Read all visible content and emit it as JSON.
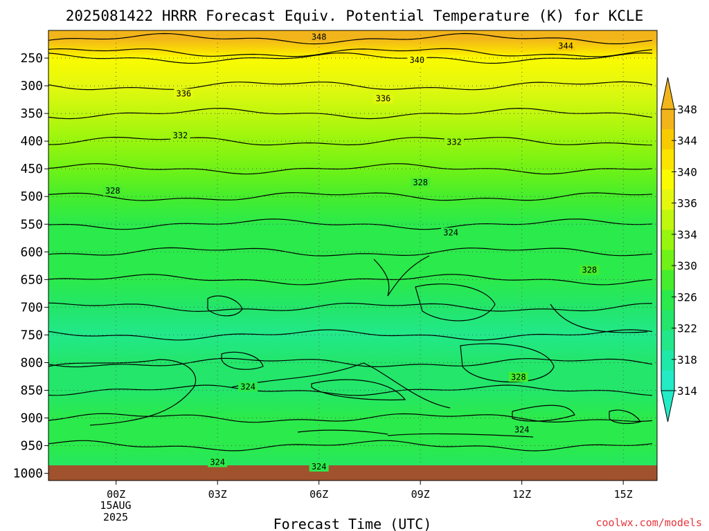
{
  "chart_data": {
    "type": "heatmap",
    "title": "2025081422 HRRR Forecast Equiv. Potential Temperature (K) for KCLE",
    "xlabel": "Forecast Time (UTC)",
    "ylabel": "",
    "x_ticks": [
      "00Z",
      "03Z",
      "06Z",
      "09Z",
      "12Z",
      "15Z"
    ],
    "x_date_label": [
      "15AUG",
      "2025"
    ],
    "x_range_hours": [
      -2.0,
      16.0
    ],
    "y_ticks": [
      250,
      300,
      350,
      400,
      450,
      500,
      550,
      600,
      650,
      700,
      750,
      800,
      850,
      900,
      950,
      1000
    ],
    "y_range_hpa": [
      200,
      1013
    ],
    "colorbar": {
      "labels": [
        314,
        318,
        322,
        326,
        330,
        334,
        336,
        340,
        344,
        348
      ],
      "colors": [
        "#22ebc6",
        "#1ee9a9",
        "#22e88a",
        "#23e66a",
        "#2bea4b",
        "#46ed2c",
        "#70f216",
        "#98f50e",
        "#c0f70e",
        "#e4f80f",
        "#fafa00",
        "#fae400",
        "#f8cb00",
        "#f2b41b"
      ],
      "extend": "both"
    },
    "profile_by_pressure": [
      {
        "p": 200,
        "value": 350
      },
      {
        "p": 215,
        "value": 346
      },
      {
        "p": 240,
        "value": 342
      },
      {
        "p": 250,
        "value": 340
      },
      {
        "p": 300,
        "value": 337
      },
      {
        "p": 350,
        "value": 334
      },
      {
        "p": 400,
        "value": 332
      },
      {
        "p": 450,
        "value": 330
      },
      {
        "p": 500,
        "value": 328
      },
      {
        "p": 550,
        "value": 326
      },
      {
        "p": 600,
        "value": 325
      },
      {
        "p": 650,
        "value": 324
      },
      {
        "p": 700,
        "value": 322
      },
      {
        "p": 750,
        "value": 320
      },
      {
        "p": 800,
        "value": 322
      },
      {
        "p": 850,
        "value": 323
      },
      {
        "p": 900,
        "value": 325
      },
      {
        "p": 950,
        "value": 324
      },
      {
        "p": 1000,
        "value": 323
      }
    ],
    "contour_labels": [
      {
        "value": "348",
        "hour": 6.0,
        "p": 212
      },
      {
        "value": "344",
        "hour": 13.3,
        "p": 228
      },
      {
        "value": "340",
        "hour": 8.9,
        "p": 254
      },
      {
        "value": "336",
        "hour": 2.0,
        "p": 314
      },
      {
        "value": "336",
        "hour": 7.9,
        "p": 323
      },
      {
        "value": "332",
        "hour": 1.9,
        "p": 390
      },
      {
        "value": "332",
        "hour": 10.0,
        "p": 402
      },
      {
        "value": "328",
        "hour": -0.1,
        "p": 490
      },
      {
        "value": "328",
        "hour": 9.0,
        "p": 475
      },
      {
        "value": "324",
        "hour": 9.9,
        "p": 565
      },
      {
        "value": "328",
        "hour": 14.0,
        "p": 633
      },
      {
        "value": "324",
        "hour": 3.9,
        "p": 844
      },
      {
        "value": "328",
        "hour": 11.9,
        "p": 826
      },
      {
        "value": "324",
        "hour": 12.0,
        "p": 921
      },
      {
        "value": "324",
        "hour": 3.0,
        "p": 980
      },
      {
        "value": "324",
        "hour": 6.0,
        "p": 988
      }
    ],
    "grid": true,
    "ground_color": "#a0522d",
    "credit": "coolwx.com/models"
  }
}
